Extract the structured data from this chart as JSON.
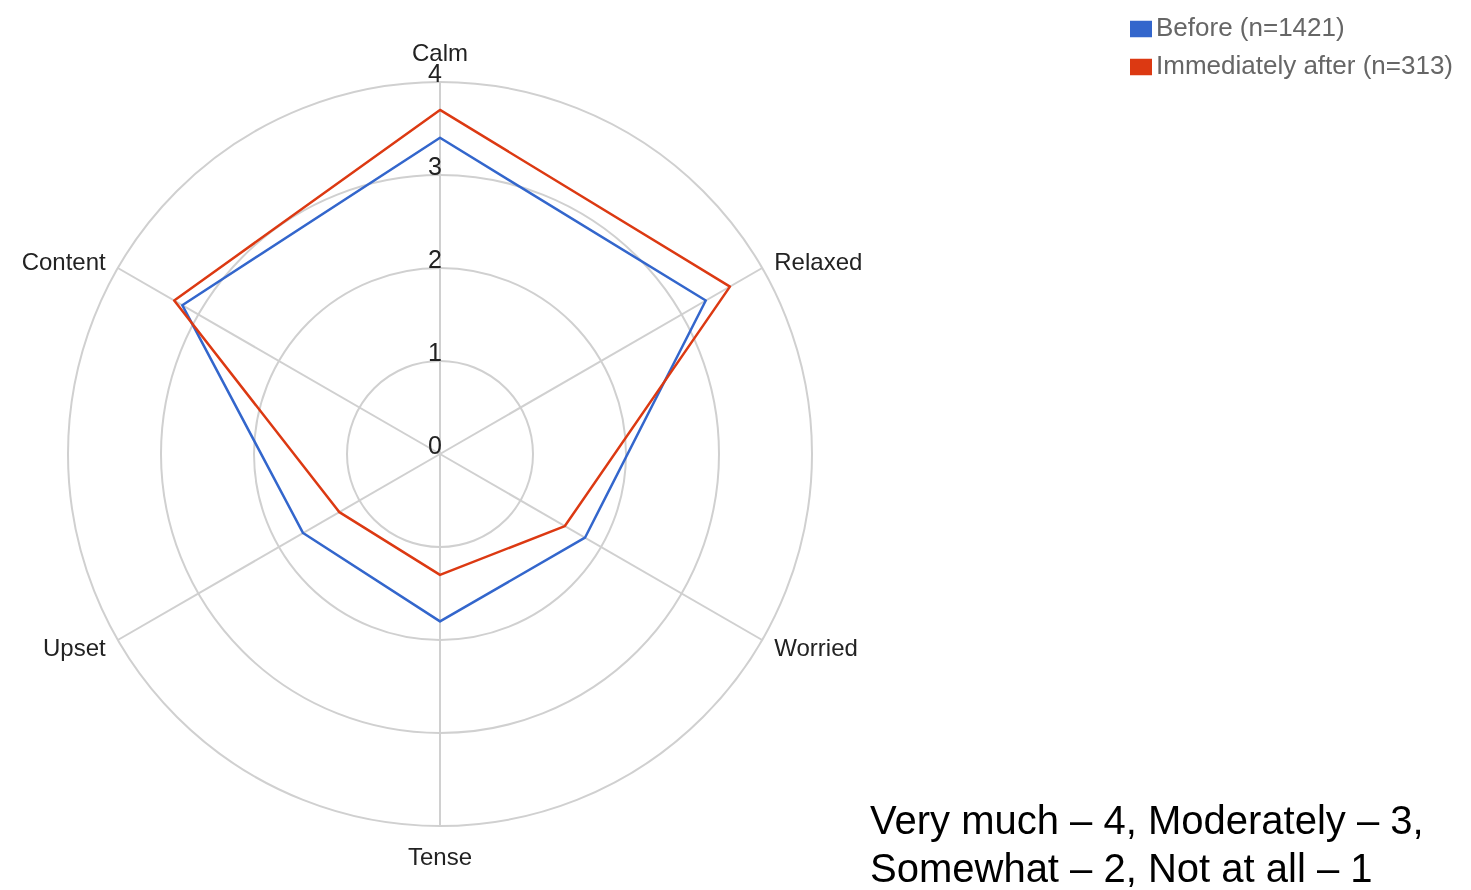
{
  "chart_data": {
    "type": "radar",
    "categories": [
      "Calm",
      "Relaxed",
      "Worried",
      "Tense",
      "Upset",
      "Content"
    ],
    "series": [
      {
        "name": "Before (n=1421)",
        "color": "#3366cc",
        "values": [
          3.4,
          3.3,
          1.8,
          1.8,
          1.7,
          3.2
        ]
      },
      {
        "name": "Immediately after (n=313)",
        "color": "#dc3912",
        "values": [
          3.7,
          3.6,
          1.55,
          1.3,
          1.25,
          3.3
        ]
      }
    ],
    "ylim": [
      0,
      4
    ],
    "yticks": [
      0,
      1,
      2,
      3,
      4
    ],
    "grid": true,
    "legend": "top right",
    "marker": "none",
    "line_style": "solid",
    "annotations": [
      "Very much – 4, Moderately – 3, Somewhat – 2, Not at all – 1"
    ]
  }
}
